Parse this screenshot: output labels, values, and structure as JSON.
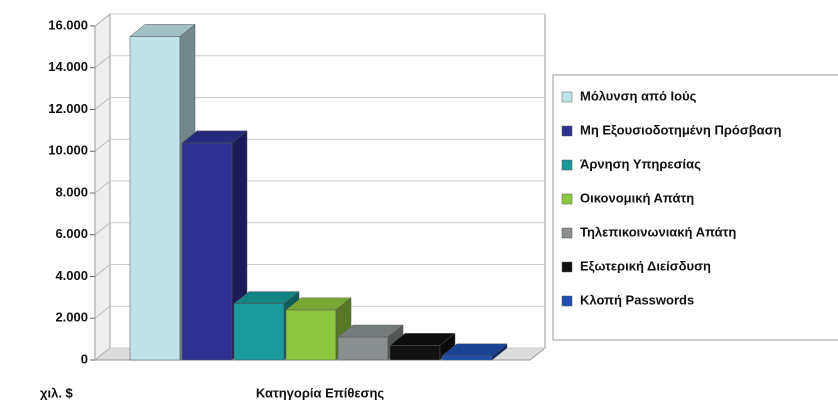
{
  "chart_data": {
    "type": "bar3d",
    "categories": [
      "Μόλυνση από Ιούς",
      "Μη Εξουσιοδοτημένη Πρόσβαση",
      "Άρνηση Υπηρεσίας",
      "Οικονομική Απάτη",
      "Τηλεπικοινωνιακή Απάτη",
      "Εξωτερική Διείσδυση",
      "Κλοπή Passwords"
    ],
    "values": [
      15500,
      10400,
      2700,
      2400,
      1100,
      700,
      200
    ],
    "colors": [
      "#bfe3e8",
      "#2e3192",
      "#1a9a9a",
      "#8dc63f",
      "#8a8f8f",
      "#111111",
      "#1f4fb0"
    ],
    "ylim": [
      0,
      16000
    ],
    "yticks": [
      0,
      {
        "value": 2000,
        "label": "2.000"
      },
      {
        "value": 4000,
        "label": "4.000"
      },
      {
        "value": 6000,
        "label": "6.000"
      },
      {
        "value": 8000,
        "label": "8.000"
      },
      {
        "value": 10000,
        "label": "10.000"
      },
      {
        "value": 12000,
        "label": "12.000"
      },
      {
        "value": 14000,
        "label": "14.000"
      },
      {
        "value": 16000,
        "label": "16.000"
      }
    ],
    "ylabel": "χιλ. $",
    "xlabel": "Κατηγορία Επίθεσης",
    "grid": true,
    "legend": "right"
  }
}
